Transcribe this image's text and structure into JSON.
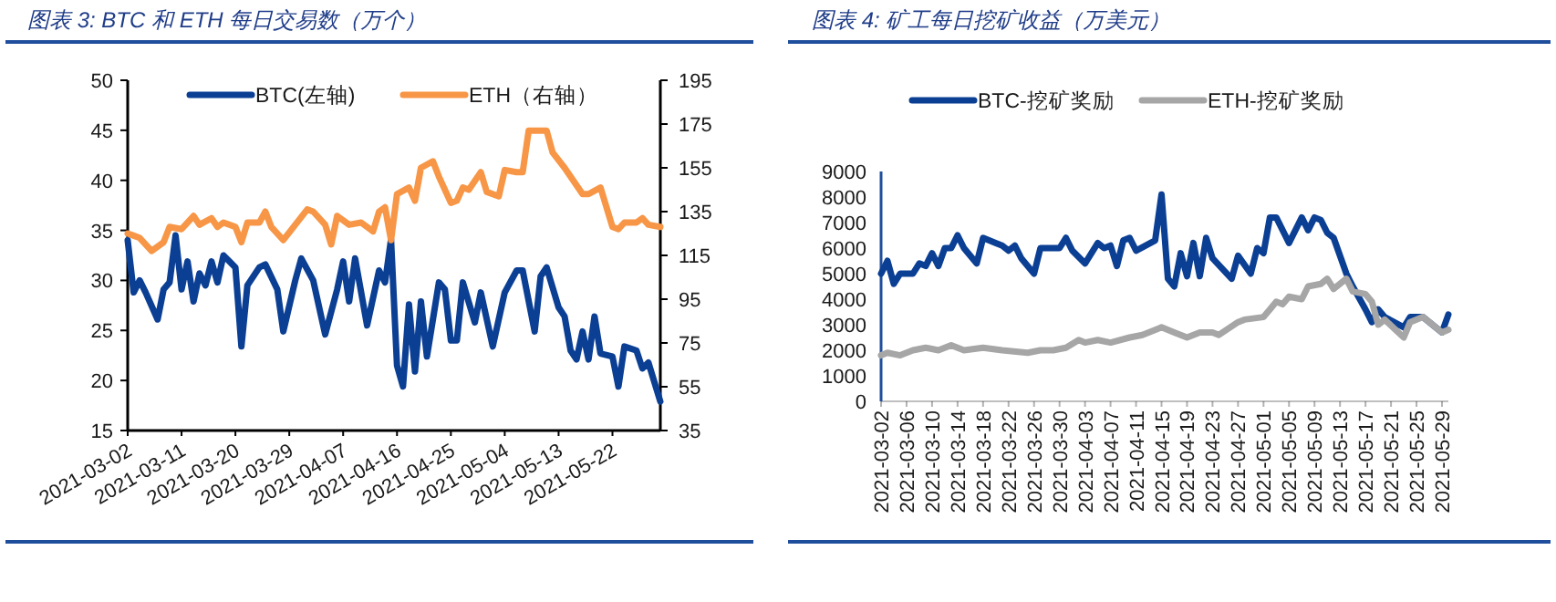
{
  "chart_data": [
    {
      "type": "line",
      "title": "图表 3:  BTC 和 ETH 每日交易数（万个）",
      "legend": "top",
      "xlim": [
        "2021-03-02",
        "2021-05-30"
      ],
      "xticks": [
        "2021-03-02",
        "2021-03-11",
        "2021-03-20",
        "2021-03-29",
        "2021-04-07",
        "2021-04-16",
        "2021-04-25",
        "2021-05-04",
        "2021-05-13",
        "2021-05-22"
      ],
      "ylim": [
        15,
        50
      ],
      "yticks": [
        15,
        20,
        25,
        30,
        35,
        40,
        45,
        50
      ],
      "y2lim": [
        35,
        195
      ],
      "y2ticks": [
        35,
        55,
        75,
        95,
        115,
        135,
        155,
        175,
        195
      ],
      "series": [
        {
          "name": "BTC(左轴)",
          "color": "#0b3f94",
          "x": [
            "2021-03-02",
            "2021-03-03",
            "2021-03-04",
            "2021-03-05",
            "2021-03-07",
            "2021-03-08",
            "2021-03-09",
            "2021-03-10",
            "2021-03-11",
            "2021-03-12",
            "2021-03-13",
            "2021-03-14",
            "2021-03-15",
            "2021-03-16",
            "2021-03-17",
            "2021-03-18",
            "2021-03-20",
            "2021-03-21",
            "2021-03-22",
            "2021-03-24",
            "2021-03-25",
            "2021-03-27",
            "2021-03-28",
            "2021-03-30",
            "2021-03-31",
            "2021-04-02",
            "2021-04-04",
            "2021-04-06",
            "2021-04-07",
            "2021-04-08",
            "2021-04-09",
            "2021-04-11",
            "2021-04-13",
            "2021-04-14",
            "2021-04-15",
            "2021-04-16",
            "2021-04-17",
            "2021-04-18",
            "2021-04-19",
            "2021-04-20",
            "2021-04-21",
            "2021-04-23",
            "2021-04-24",
            "2021-04-25",
            "2021-04-26",
            "2021-04-27",
            "2021-04-29",
            "2021-04-30",
            "2021-05-02",
            "2021-05-04",
            "2021-05-06",
            "2021-05-07",
            "2021-05-09",
            "2021-05-10",
            "2021-05-11",
            "2021-05-13",
            "2021-05-14",
            "2021-05-15",
            "2021-05-16",
            "2021-05-17",
            "2021-05-18",
            "2021-05-19",
            "2021-05-20",
            "2021-05-22",
            "2021-05-23",
            "2021-05-24",
            "2021-05-26",
            "2021-05-27",
            "2021-05-28",
            "2021-05-30"
          ],
          "values": [
            34,
            28.8,
            30,
            28.8,
            26.1,
            29.1,
            29.8,
            34.5,
            29.1,
            31.9,
            27.9,
            30.7,
            29.5,
            31.9,
            29.8,
            32.5,
            31.3,
            23.4,
            29.5,
            31.3,
            31.6,
            29.1,
            24.9,
            30,
            32.2,
            30,
            24.6,
            29.1,
            31.9,
            27.9,
            32.2,
            25.5,
            31,
            29.8,
            34.1,
            21.5,
            19.4,
            27.6,
            20.9,
            27.9,
            22.4,
            29.8,
            29.1,
            24,
            24,
            29.8,
            25.8,
            28.8,
            23.4,
            28.8,
            31,
            31,
            24.9,
            30.4,
            31.3,
            27.3,
            26.4,
            23,
            22.1,
            24.9,
            22.1,
            26.4,
            22.7,
            22.4,
            19.4,
            23.4,
            23,
            21.2,
            21.8,
            17.9
          ]
        },
        {
          "name": "ETH（右轴）",
          "color": "#f79646",
          "axis": "y2",
          "x": [
            "2021-03-02",
            "2021-03-03",
            "2021-03-04",
            "2021-03-06",
            "2021-03-08",
            "2021-03-09",
            "2021-03-11",
            "2021-03-13",
            "2021-03-14",
            "2021-03-16",
            "2021-03-17",
            "2021-03-18",
            "2021-03-20",
            "2021-03-21",
            "2021-03-22",
            "2021-03-24",
            "2021-03-25",
            "2021-03-26",
            "2021-03-28",
            "2021-03-30",
            "2021-04-01",
            "2021-04-02",
            "2021-04-04",
            "2021-04-05",
            "2021-04-06",
            "2021-04-08",
            "2021-04-10",
            "2021-04-12",
            "2021-04-13",
            "2021-04-14",
            "2021-04-15",
            "2021-04-16",
            "2021-04-18",
            "2021-04-19",
            "2021-04-20",
            "2021-04-22",
            "2021-04-23",
            "2021-04-25",
            "2021-04-26",
            "2021-04-27",
            "2021-04-28",
            "2021-04-30",
            "2021-05-01",
            "2021-05-03",
            "2021-05-04",
            "2021-05-06",
            "2021-05-07",
            "2021-05-08",
            "2021-05-11",
            "2021-05-12",
            "2021-05-14",
            "2021-05-17",
            "2021-05-18",
            "2021-05-20",
            "2021-05-22",
            "2021-05-23",
            "2021-05-24",
            "2021-05-26",
            "2021-05-27",
            "2021-05-28",
            "2021-05-30"
          ],
          "values": [
            125,
            124,
            123,
            117,
            121,
            128,
            127,
            133,
            129,
            132,
            128,
            130,
            128,
            121,
            130,
            130,
            135,
            128,
            122,
            129,
            136,
            135,
            129,
            120,
            133,
            129,
            130,
            126,
            135,
            137,
            122,
            143,
            146,
            140,
            155,
            158,
            151,
            139,
            140,
            146,
            145,
            153,
            144,
            142,
            154,
            153,
            153,
            172,
            172,
            162,
            155,
            143,
            143,
            146,
            128,
            127,
            130,
            130,
            132,
            129,
            128
          ]
        }
      ]
    },
    {
      "type": "line",
      "title": "图表 4:  矿工每日挖矿收益（万美元）",
      "legend": "top",
      "xlim": [
        "2021-03-02",
        "2021-05-30"
      ],
      "xticks": [
        "2021-03-02",
        "2021-03-06",
        "2021-03-10",
        "2021-03-14",
        "2021-03-18",
        "2021-03-22",
        "2021-03-26",
        "2021-03-30",
        "2021-04-03",
        "2021-04-07",
        "2021-04-11",
        "2021-04-15",
        "2021-04-19",
        "2021-04-23",
        "2021-04-27",
        "2021-05-01",
        "2021-05-05",
        "2021-05-09",
        "2021-05-13",
        "2021-05-17",
        "2021-05-21",
        "2021-05-25",
        "2021-05-29"
      ],
      "ylim": [
        0,
        9000
      ],
      "yticks": [
        0,
        1000,
        2000,
        3000,
        4000,
        5000,
        6000,
        7000,
        8000,
        9000
      ],
      "series": [
        {
          "name": "BTC-挖矿奖励",
          "color": "#0b3f94",
          "x": [
            "2021-03-02",
            "2021-03-03",
            "2021-03-04",
            "2021-03-05",
            "2021-03-07",
            "2021-03-08",
            "2021-03-09",
            "2021-03-10",
            "2021-03-11",
            "2021-03-12",
            "2021-03-13",
            "2021-03-14",
            "2021-03-15",
            "2021-03-17",
            "2021-03-18",
            "2021-03-20",
            "2021-03-21",
            "2021-03-22",
            "2021-03-23",
            "2021-03-24",
            "2021-03-26",
            "2021-03-27",
            "2021-03-29",
            "2021-03-30",
            "2021-03-31",
            "2021-04-01",
            "2021-04-03",
            "2021-04-05",
            "2021-04-06",
            "2021-04-07",
            "2021-04-08",
            "2021-04-09",
            "2021-04-10",
            "2021-04-11",
            "2021-04-14",
            "2021-04-15",
            "2021-04-16",
            "2021-04-17",
            "2021-04-18",
            "2021-04-19",
            "2021-04-20",
            "2021-04-21",
            "2021-04-22",
            "2021-04-23",
            "2021-04-26",
            "2021-04-27",
            "2021-04-29",
            "2021-04-30",
            "2021-05-01",
            "2021-05-02",
            "2021-05-03",
            "2021-05-05",
            "2021-05-07",
            "2021-05-08",
            "2021-05-09",
            "2021-05-10",
            "2021-05-11",
            "2021-05-12",
            "2021-05-14",
            "2021-05-15",
            "2021-05-17",
            "2021-05-18",
            "2021-05-19",
            "2021-05-20",
            "2021-05-23",
            "2021-05-24",
            "2021-05-26",
            "2021-05-29",
            "2021-05-30"
          ],
          "values": [
            5000,
            5500,
            4600,
            5000,
            5000,
            5400,
            5300,
            5800,
            5300,
            6000,
            6000,
            6500,
            6000,
            5400,
            6400,
            6200,
            6100,
            5900,
            6100,
            5600,
            5000,
            6000,
            6000,
            6000,
            6400,
            5900,
            5400,
            6200,
            6000,
            6100,
            5300,
            6300,
            6400,
            5900,
            6300,
            8100,
            4800,
            4500,
            5800,
            4900,
            6200,
            4900,
            6400,
            5600,
            4800,
            5700,
            5000,
            6000,
            5800,
            7200,
            7200,
            6200,
            7200,
            6700,
            7200,
            7100,
            6600,
            6400,
            5000,
            4500,
            3600,
            3100,
            3600,
            3300,
            2900,
            3300,
            3300,
            2700,
            3400
          ]
        },
        {
          "name": "ETH-挖矿奖励",
          "color": "#a6a6a6",
          "x": [
            "2021-03-02",
            "2021-03-03",
            "2021-03-05",
            "2021-03-07",
            "2021-03-09",
            "2021-03-11",
            "2021-03-13",
            "2021-03-15",
            "2021-03-18",
            "2021-03-21",
            "2021-03-25",
            "2021-03-27",
            "2021-03-29",
            "2021-03-31",
            "2021-04-02",
            "2021-04-03",
            "2021-04-05",
            "2021-04-07",
            "2021-04-10",
            "2021-04-12",
            "2021-04-15",
            "2021-04-17",
            "2021-04-19",
            "2021-04-21",
            "2021-04-23",
            "2021-04-24",
            "2021-04-27",
            "2021-04-28",
            "2021-05-01",
            "2021-05-02",
            "2021-05-03",
            "2021-05-04",
            "2021-05-05",
            "2021-05-07",
            "2021-05-08",
            "2021-05-10",
            "2021-05-11",
            "2021-05-12",
            "2021-05-14",
            "2021-05-15",
            "2021-05-17",
            "2021-05-18",
            "2021-05-19",
            "2021-05-20",
            "2021-05-23",
            "2021-05-24",
            "2021-05-26",
            "2021-05-29",
            "2021-05-30"
          ],
          "values": [
            1800,
            1900,
            1800,
            2000,
            2100,
            2000,
            2200,
            2000,
            2100,
            2000,
            1900,
            2000,
            2000,
            2100,
            2400,
            2300,
            2400,
            2300,
            2500,
            2600,
            2900,
            2700,
            2500,
            2700,
            2700,
            2600,
            3100,
            3200,
            3300,
            3600,
            3900,
            3800,
            4100,
            4000,
            4500,
            4600,
            4800,
            4400,
            4800,
            4300,
            4200,
            3900,
            3000,
            3200,
            2500,
            3100,
            3300,
            2700,
            2800
          ]
        }
      ]
    }
  ]
}
